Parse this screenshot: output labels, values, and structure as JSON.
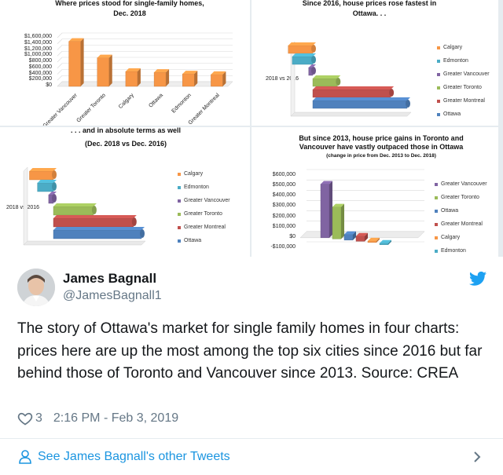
{
  "colors": {
    "calgary": "#f79646",
    "edmonton": "#4bacc6",
    "vancouver": "#8064a2",
    "toronto": "#9bbb59",
    "montreal": "#c0504d",
    "ottawa": "#4f81bd",
    "link": "#1b95e0",
    "muted": "#657786",
    "twitter": "#1da1f2"
  },
  "charts": {
    "top_left": {
      "title_line1": "Where prices stood for single-family homes,",
      "title_line2": "Dec. 2018",
      "yticks": [
        "$1,600,000",
        "$1,400,000",
        "$1,200,000",
        "$1,000,000",
        "$800,000",
        "$600,000",
        "$400,000",
        "$200,000",
        "$0"
      ],
      "categories": [
        "Greater Vancouver",
        "Greater Toronto",
        "Calgary",
        "Ottawa",
        "Edmonton",
        "Greater Montreal"
      ]
    },
    "top_right": {
      "title_line1": "Since 2016, house prices rose fastest in",
      "title_line2": "Ottawa. . .",
      "series_label": "2018 vs 2016",
      "legend": [
        "Calgary",
        "Edmonton",
        "Greater Vancouver",
        "Greater Toronto",
        "Greater Montreal",
        "Ottawa"
      ]
    },
    "bottom_left": {
      "title_line1": ". . . and in absolute terms as well",
      "title_line2": "(Dec. 2018 vs Dec. 2016)",
      "series_label": "2018 vs 2016",
      "legend": [
        "Calgary",
        "Edmonton",
        "Greater Vancouver",
        "Greater Toronto",
        "Greater Montreal",
        "Ottawa"
      ]
    },
    "bottom_right": {
      "title_line1": "But since 2013, house price gains in Toronto and",
      "title_line2": "Vancouver have vastly outpaced those in Ottawa",
      "subtitle": "(change in price from Dec. 2013 to Dec. 2018)",
      "yticks": [
        "$600,000",
        "$500,000",
        "$400,000",
        "$300,000",
        "$200,000",
        "$100,000",
        "$0",
        "-$100,000"
      ],
      "legend": [
        "Greater Vancouver",
        "Greater Toronto",
        "Ottawa",
        "Greater Montreal",
        "Calgary",
        "Edmonton"
      ]
    }
  },
  "chart_data": [
    {
      "type": "bar",
      "title": "Where prices stood for single-family homes, Dec. 2018",
      "categories": [
        "Greater Vancouver",
        "Greater Toronto",
        "Calgary",
        "Ottawa",
        "Edmonton",
        "Greater Montreal"
      ],
      "values": [
        1480000,
        940000,
        490000,
        460000,
        410000,
        390000
      ],
      "ylim": [
        0,
        1600000
      ]
    },
    {
      "type": "bar",
      "title": "Since 2016, house prices rose fastest in Ottawa. . .",
      "categories": [
        "2018 vs 2016"
      ],
      "series": [
        {
          "name": "Calgary",
          "values": [
            -0.03
          ]
        },
        {
          "name": "Edmonton",
          "values": [
            -0.025
          ]
        },
        {
          "name": "Greater Vancouver",
          "values": [
            -0.005
          ]
        },
        {
          "name": "Greater Toronto",
          "values": [
            0.03
          ]
        },
        {
          "name": "Greater Montreal",
          "values": [
            0.095
          ]
        },
        {
          "name": "Ottawa",
          "values": [
            0.115
          ]
        }
      ]
    },
    {
      "type": "bar",
      "title": ". . . and in absolute terms as well",
      "subtitle": "(Dec. 2018 vs Dec. 2016)",
      "categories": [
        "2018 vs 2016"
      ],
      "series": [
        {
          "name": "Calgary",
          "values": [
            -15000
          ]
        },
        {
          "name": "Edmonton",
          "values": [
            -10000
          ]
        },
        {
          "name": "Greater Vancouver",
          "values": [
            -3000
          ]
        },
        {
          "name": "Greater Toronto",
          "values": [
            25000
          ]
        },
        {
          "name": "Greater Montreal",
          "values": [
            50000
          ]
        },
        {
          "name": "Ottawa",
          "values": [
            55000
          ]
        }
      ]
    },
    {
      "type": "bar",
      "title": "But since 2013, house price gains in Toronto and Vancouver have vastly outpaced those in Ottawa",
      "subtitle": "(change in price from Dec. 2013 to Dec. 2018)",
      "categories": [
        "2013 vs 2018"
      ],
      "series": [
        {
          "name": "Greater Vancouver",
          "values": [
            520000
          ]
        },
        {
          "name": "Greater Toronto",
          "values": [
            310000
          ]
        },
        {
          "name": "Ottawa",
          "values": [
            55000
          ]
        },
        {
          "name": "Greater Montreal",
          "values": [
            50000
          ]
        },
        {
          "name": "Calgary",
          "values": [
            15000
          ]
        },
        {
          "name": "Edmonton",
          "values": [
            5000
          ]
        }
      ],
      "ylim": [
        -100000,
        600000
      ]
    }
  ],
  "tweet": {
    "display_name": "James Bagnall",
    "handle": "@JamesBagnall1",
    "text": "The story of Ottawa's market for single family homes in four charts: prices here are up the most among the top six cities since 2016 but far behind those of Toronto and Vancouver since 2013.  Source: CREA",
    "likes": "3",
    "timestamp": "2:16 PM - Feb 3, 2019",
    "footer_link": "See James Bagnall's other Tweets"
  }
}
